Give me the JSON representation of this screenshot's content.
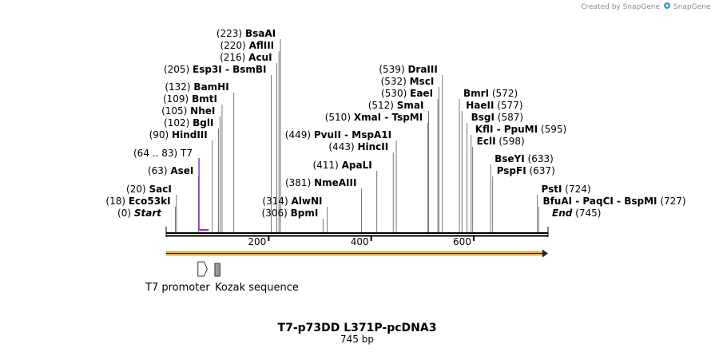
{
  "credit": "Created by SnapGene",
  "map": {
    "title": "T7-p73DD L371P-pcDNA3",
    "length_label": "745 bp",
    "length_bp": 745,
    "ruler_ticks": [
      {
        "bp": 200,
        "label": "200"
      },
      {
        "bp": 400,
        "label": "400"
      },
      {
        "bp": 600,
        "label": "600"
      }
    ],
    "primer": {
      "pos_label": "(64 .. 83)",
      "name": "T7",
      "start_bp": 64,
      "end_bp": 83,
      "color": "#9b30c8"
    },
    "features": [
      {
        "name": "T7 promoter",
        "start_bp": 62,
        "end_bp": 80,
        "shape": "arrow",
        "color": "#ffffff"
      },
      {
        "name": "Kozak sequence",
        "start_bp": 95,
        "end_bp": 105,
        "shape": "box",
        "color": "#9a9a9a"
      }
    ],
    "sites": [
      {
        "pos": 0,
        "pos_label": "(0)",
        "name": "Start",
        "style": "italic"
      },
      {
        "pos": 18,
        "pos_label": "(18)",
        "name": "Eco53kI"
      },
      {
        "pos": 20,
        "pos_label": "(20)",
        "name": "SacI"
      },
      {
        "pos": 63,
        "pos_label": "(63)",
        "name": "AseI"
      },
      {
        "pos": 90,
        "pos_label": "(90)",
        "name": "HindIII"
      },
      {
        "pos": 102,
        "pos_label": "(102)",
        "name": "BglI"
      },
      {
        "pos": 105,
        "pos_label": "(105)",
        "name": "NheI"
      },
      {
        "pos": 109,
        "pos_label": "(109)",
        "name": "BmtI"
      },
      {
        "pos": 132,
        "pos_label": "(132)",
        "name": "BamHI"
      },
      {
        "pos": 205,
        "pos_label": "(205)",
        "name": "Esp3I  -  BsmBI"
      },
      {
        "pos": 216,
        "pos_label": "(216)",
        "name": "AcuI"
      },
      {
        "pos": 220,
        "pos_label": "(220)",
        "name": "AflIII"
      },
      {
        "pos": 223,
        "pos_label": "(223)",
        "name": "BsaAI"
      },
      {
        "pos": 306,
        "pos_label": "(306)",
        "name": "BpmI"
      },
      {
        "pos": 314,
        "pos_label": "(314)",
        "name": "AlwNI"
      },
      {
        "pos": 381,
        "pos_label": "(381)",
        "name": "NmeAIII"
      },
      {
        "pos": 411,
        "pos_label": "(411)",
        "name": "ApaLI"
      },
      {
        "pos": 443,
        "pos_label": "(443)",
        "name": "HincII"
      },
      {
        "pos": 449,
        "pos_label": "(449)",
        "name": "PvuII  -  MspA1I"
      },
      {
        "pos": 510,
        "pos_label": "(510)",
        "name": "XmaI  -  TspMI"
      },
      {
        "pos": 512,
        "pos_label": "(512)",
        "name": "SmaI"
      },
      {
        "pos": 530,
        "pos_label": "(530)",
        "name": "EaeI"
      },
      {
        "pos": 532,
        "pos_label": "(532)",
        "name": "MscI"
      },
      {
        "pos": 539,
        "pos_label": "(539)",
        "name": "DraIII"
      },
      {
        "pos": 572,
        "pos_label": "(572)",
        "name": "BmrI"
      },
      {
        "pos": 577,
        "pos_label": "(577)",
        "name": "HaeII"
      },
      {
        "pos": 587,
        "pos_label": "(587)",
        "name": "BsgI"
      },
      {
        "pos": 595,
        "pos_label": "(595)",
        "name": "KflI  -  PpuMI"
      },
      {
        "pos": 598,
        "pos_label": "(598)",
        "name": "EclI"
      },
      {
        "pos": 633,
        "pos_label": "(633)",
        "name": "BseYI"
      },
      {
        "pos": 637,
        "pos_label": "(637)",
        "name": "PspFI"
      },
      {
        "pos": 724,
        "pos_label": "(724)",
        "name": "PstI"
      },
      {
        "pos": 727,
        "pos_label": "(727)",
        "name": "BfuAI  -  PaqCI  -  BspMI"
      },
      {
        "pos": 745,
        "pos_label": "(745)",
        "name": "End",
        "style": "italic"
      }
    ]
  }
}
